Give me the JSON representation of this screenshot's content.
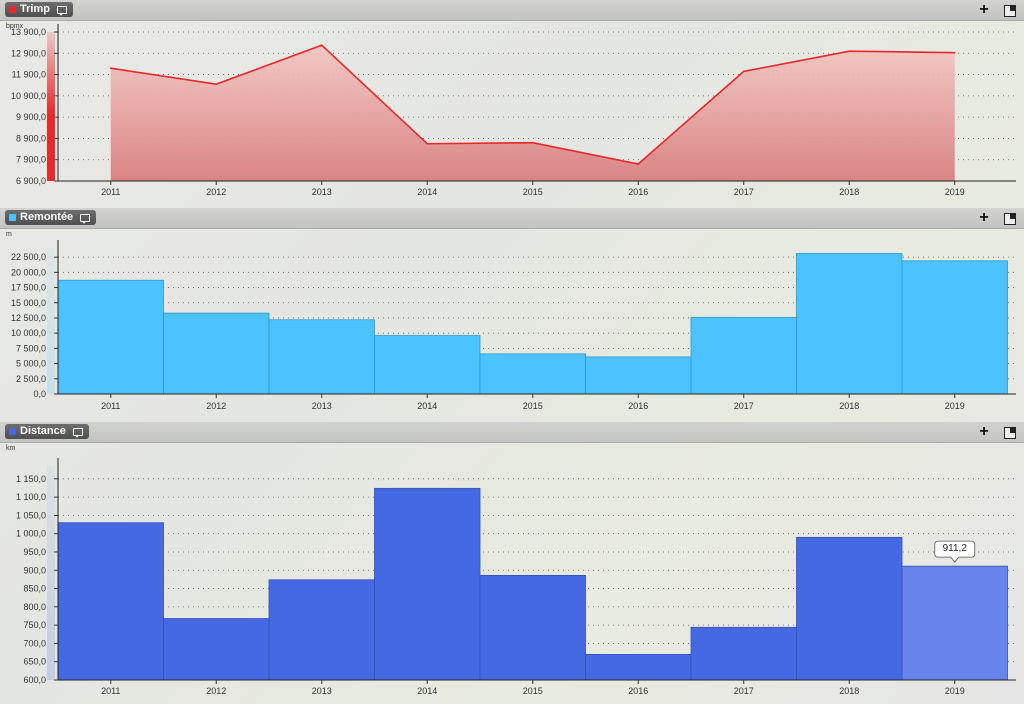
{
  "panels": [
    {
      "title": "Trimp",
      "accent": "#e8282a"
    },
    {
      "title": "Remontée",
      "accent": "#4cc3fc"
    },
    {
      "title": "Distance",
      "accent": "#4569e3"
    }
  ],
  "header_buttons": {
    "add_label": "+"
  },
  "chart_data": [
    {
      "type": "area",
      "unit": "bpmx",
      "categories": [
        "2011",
        "2012",
        "2013",
        "2014",
        "2015",
        "2016",
        "2017",
        "2018",
        "2019"
      ],
      "values": [
        12200,
        11450,
        13280,
        8650,
        8700,
        7700,
        12050,
        13000,
        12930
      ],
      "ylim": [
        6900,
        13900
      ],
      "yticks": [
        6900,
        7900,
        8900,
        9900,
        10900,
        11900,
        12900,
        13900
      ],
      "ytick_labels": [
        "6 900,0",
        "7 900,0",
        "8 900,0",
        "9 900,0",
        "10 900,0",
        "11 900,0",
        "12 900,0",
        "13 900,0"
      ],
      "grid": true,
      "colors": {
        "line": "#e8282a",
        "fill_top": "#f2c4c0",
        "fill_bottom": "#d97f7f"
      }
    },
    {
      "type": "bar",
      "unit": "m",
      "categories": [
        "2011",
        "2012",
        "2013",
        "2014",
        "2015",
        "2016",
        "2017",
        "2018",
        "2019"
      ],
      "values": [
        18700,
        13300,
        12200,
        9600,
        6600,
        6100,
        12600,
        23100,
        21900
      ],
      "ylim": [
        0,
        24000
      ],
      "yticks": [
        0,
        2500,
        5000,
        7500,
        10000,
        12500,
        15000,
        17500,
        20000,
        22500
      ],
      "ytick_labels": [
        "0,0",
        "2 500,0",
        "5 000,0",
        "7 500,0",
        "10 000,0",
        "12 500,0",
        "15 000,0",
        "17 500,0",
        "20 000,0",
        "22 500,0"
      ],
      "grid": true,
      "colors": {
        "bar": "#4cc3fc",
        "stroke": "#2e97cf"
      }
    },
    {
      "type": "bar",
      "unit": "km",
      "categories": [
        "2011",
        "2012",
        "2013",
        "2014",
        "2015",
        "2016",
        "2017",
        "2018",
        "2019"
      ],
      "values": [
        1030,
        768,
        874,
        1124,
        886,
        670,
        744,
        990,
        911.2
      ],
      "ylim": [
        600,
        1185
      ],
      "yticks": [
        600,
        650,
        700,
        750,
        800,
        850,
        900,
        950,
        1000,
        1050,
        1100,
        1150
      ],
      "ytick_labels": [
        "600,0",
        "650,0",
        "700,0",
        "750,0",
        "800,0",
        "850,0",
        "900,0",
        "950,0",
        "1 000,0",
        "1 050,0",
        "1 100,0",
        "1 150,0"
      ],
      "grid": true,
      "highlight_index": 8,
      "tooltip": "911,2",
      "colors": {
        "bar": "#4569e3",
        "stroke": "#3451b8",
        "highlight": "#6684ec"
      }
    }
  ]
}
